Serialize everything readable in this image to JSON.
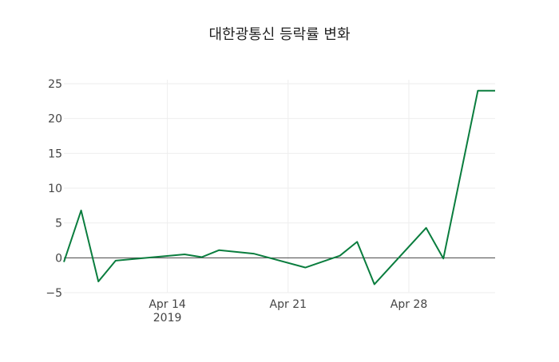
{
  "chart_data": {
    "type": "line",
    "title": "대한광통신 등락률 변화",
    "xlabel": "",
    "ylabel": "",
    "x": [
      "2019-04-08",
      "2019-04-09",
      "2019-04-10",
      "2019-04-11",
      "2019-04-15",
      "2019-04-16",
      "2019-04-17",
      "2019-04-19",
      "2019-04-22",
      "2019-04-24",
      "2019-04-25",
      "2019-04-26",
      "2019-04-29",
      "2019-04-30",
      "2019-05-02",
      "2019-05-03"
    ],
    "series": [
      {
        "name": "등락률",
        "color": "#0a7d3e",
        "values": [
          -0.6,
          6.8,
          -3.4,
          -0.4,
          0.5,
          0.1,
          1.1,
          0.6,
          -1.4,
          0.3,
          2.3,
          -3.8,
          4.3,
          -0.1,
          24.0,
          24.0
        ]
      }
    ],
    "ylim": [
      -5,
      25
    ],
    "xlim": [
      "2019-04-08",
      "2019-05-03"
    ],
    "yticks": [
      -5,
      0,
      5,
      10,
      15,
      20,
      25
    ],
    "ytick_labels": [
      "−5",
      "0",
      "5",
      "10",
      "15",
      "20",
      "25"
    ],
    "xticks": [
      {
        "date": "2019-04-14",
        "label": "Apr 14",
        "sublabel": "2019"
      },
      {
        "date": "2019-04-21",
        "label": "Apr 21",
        "sublabel": ""
      },
      {
        "date": "2019-04-28",
        "label": "Apr 28",
        "sublabel": ""
      }
    ],
    "grid": true,
    "zeroline": true
  }
}
